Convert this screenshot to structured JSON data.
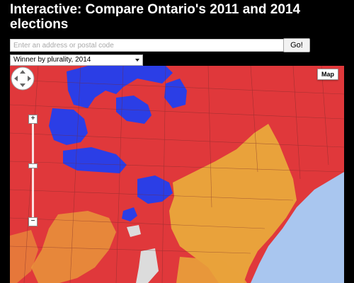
{
  "page": {
    "title": "Interactive: Compare Ontario's 2011 and 2014 elections"
  },
  "search": {
    "placeholder": "Enter an address or postal code",
    "value": "",
    "go_label": "Go!"
  },
  "view_select": {
    "selected": "Winner by plurality, 2014"
  },
  "map": {
    "type_button_label": "Map",
    "zoom_in_label": "+",
    "zoom_out_label": "−",
    "legend_colors": {
      "liberal": "#e0383b",
      "pc": "#2b3ee6",
      "ndp": "#e9a23b",
      "water": "#a9c6ef",
      "unassigned": "#dcdcdc"
    }
  }
}
